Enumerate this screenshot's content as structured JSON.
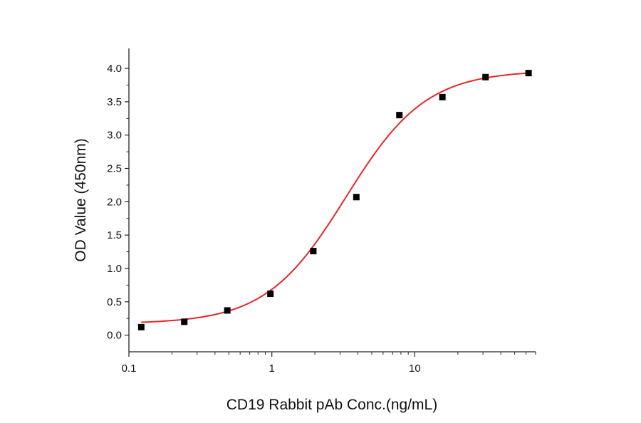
{
  "chart_data": {
    "type": "scatter",
    "title": "",
    "xlabel": "CD19 Rabbit pAb Conc.(ng/mL)",
    "ylabel": "OD Value (450nm)",
    "xscale": "log",
    "xlim": [
      0.1,
      70
    ],
    "ylim": [
      -0.25,
      4.3
    ],
    "x_ticks": [
      0.1,
      1,
      10
    ],
    "x_tick_labels": [
      "0.1",
      "1",
      "10"
    ],
    "y_ticks": [
      0.0,
      0.5,
      1.0,
      1.5,
      2.0,
      2.5,
      3.0,
      3.5,
      4.0
    ],
    "y_tick_labels": [
      "0.0",
      "0.5",
      "1.0",
      "1.5",
      "2.0",
      "2.5",
      "3.0",
      "3.5",
      "4.0"
    ],
    "grid": false,
    "legend": "none",
    "series": [
      {
        "x": [
          0.122,
          0.244,
          0.488,
          0.977,
          1.95,
          3.9,
          7.8,
          15.6,
          31.25,
          62.5
        ],
        "y": [
          0.12,
          0.2,
          0.37,
          0.62,
          1.26,
          2.07,
          3.3,
          3.57,
          3.87,
          3.93
        ],
        "marker": "square",
        "color": "#000000"
      }
    ],
    "fit_curve": {
      "model": "4PL",
      "bottom": 0.17,
      "top": 3.97,
      "ec50": 3.3,
      "hill": 1.55,
      "color": "#e8262a"
    }
  }
}
